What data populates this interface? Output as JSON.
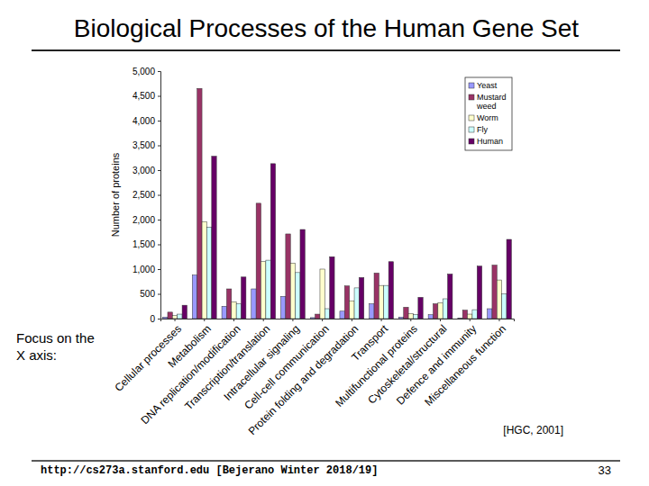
{
  "slide": {
    "title": "Biological Processes of the Human Gene Set",
    "note": "Focus on the X axis:",
    "source": "[HGC, 2001]",
    "footer": "http://cs273a.stanford.edu [Bejerano Winter 2018/19]",
    "page": 33
  },
  "chart_data": {
    "type": "bar",
    "ylabel": "Number of proteins",
    "categories": [
      "Cellular processes",
      "Metabolism",
      "DNA replication/modification",
      "Transcription/translation",
      "Intracellular signaling",
      "Cell-cell communication",
      "Protein folding and degradation",
      "Transport",
      "Multifunctional proteins",
      "Cytoskeletal/structural",
      "Defence and immunity",
      "Miscellaneous function"
    ],
    "series": [
      {
        "name": "Yeast",
        "color": "#9999ff",
        "values": [
          30,
          880,
          250,
          600,
          450,
          20,
          150,
          300,
          30,
          80,
          10,
          200
        ]
      },
      {
        "name": "Mustard weed",
        "color": "#993366",
        "values": [
          130,
          4650,
          600,
          2330,
          1710,
          90,
          660,
          920,
          230,
          300,
          170,
          1080
        ]
      },
      {
        "name": "Worm",
        "color": "#ffffcc",
        "values": [
          60,
          1960,
          340,
          1150,
          1120,
          1000,
          360,
          670,
          100,
          320,
          90,
          780
        ]
      },
      {
        "name": "Fly",
        "color": "#ccffff",
        "values": [
          90,
          1850,
          300,
          1180,
          930,
          200,
          620,
          670,
          80,
          400,
          180,
          500
        ]
      },
      {
        "name": "Human",
        "color": "#660066",
        "values": [
          270,
          3280,
          840,
          3130,
          1800,
          1250,
          830,
          1150,
          430,
          900,
          1060,
          1600
        ]
      }
    ],
    "ylim": [
      0,
      5000
    ],
    "yticks": [
      0,
      500,
      {
        "value": 1000,
        "label": "1,000"
      },
      {
        "value": 1500,
        "label": "1,500"
      },
      {
        "value": 2000,
        "label": "2,000"
      },
      {
        "value": 2500,
        "label": "2,500"
      },
      {
        "value": 3000,
        "label": "3,000"
      },
      {
        "value": 3500,
        "label": "3,500"
      },
      {
        "value": 4000,
        "label": "4,000"
      },
      {
        "value": 4500,
        "label": "4,500"
      },
      {
        "value": 5000,
        "label": "5,000"
      }
    ],
    "grid": false,
    "legend": "top-right"
  }
}
